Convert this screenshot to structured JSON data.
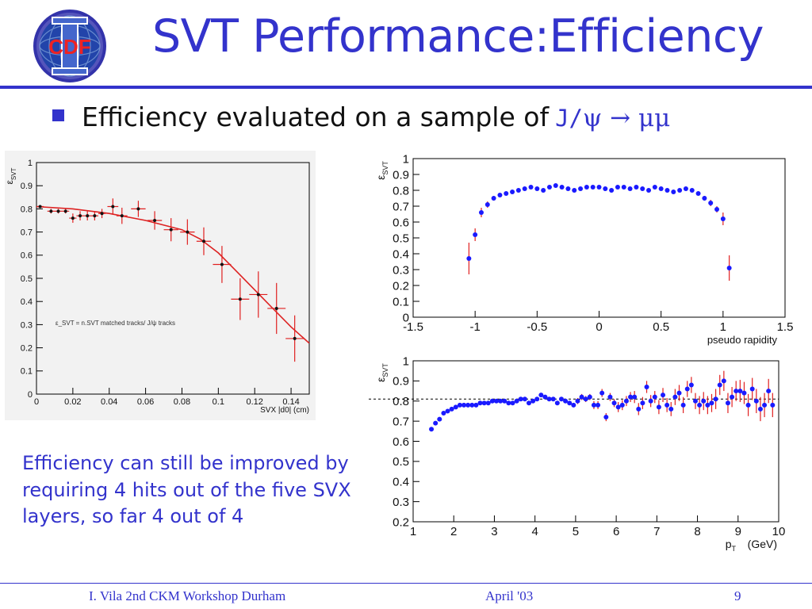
{
  "slide": {
    "logo_text": "CDF",
    "title": "SVT Performance:Efficiency",
    "bullet": {
      "text": "Efficiency evaluated on a sample of",
      "formula_prefix": "J/",
      "formula_greek": "ψ → μμ"
    },
    "note": "Efficiency can still be improved by requiring 4 hits out of the five SVX layers, so far 4 out of 4",
    "footer": {
      "left": "I. Vila  2nd CKM Workshop  Durham",
      "center": "April '03",
      "right": "9"
    },
    "colors": {
      "accent": "#3333cc",
      "marker_blue": "#1a1aff",
      "error_red": "#e02020",
      "fit_red": "#dd2222"
    }
  },
  "chart_data": [
    {
      "type": "scatter",
      "title": "",
      "ylabel": "ε_SVT",
      "xlabel": "SVX |d0| (cm)",
      "xlim": [
        0,
        0.15
      ],
      "ylim": [
        0,
        1
      ],
      "xticks": [
        "0",
        "0.02",
        "0.04",
        "0.06",
        "0.08",
        "0.1",
        "0.12",
        "0.14"
      ],
      "yticks": [
        "0",
        "0.1",
        "0.2",
        "0.3",
        "0.4",
        "0.5",
        "0.6",
        "0.7",
        "0.8",
        "0.9",
        "1"
      ],
      "annotation": "ε_SVT = n.SVT matched tracks/ J/ψ tracks",
      "fit": {
        "type": "curve",
        "color": "red",
        "x": [
          0,
          0.02,
          0.04,
          0.06,
          0.08,
          0.09,
          0.1,
          0.11,
          0.12,
          0.13,
          0.14,
          0.15
        ],
        "y": [
          0.81,
          0.8,
          0.78,
          0.75,
          0.71,
          0.67,
          0.61,
          0.53,
          0.45,
          0.37,
          0.29,
          0.22
        ]
      },
      "series": [
        {
          "x": [
            0.002,
            0.008,
            0.012,
            0.016,
            0.02,
            0.024,
            0.028,
            0.032,
            0.036,
            0.042,
            0.047,
            0.056,
            0.065,
            0.074,
            0.083,
            0.092,
            0.102,
            0.112,
            0.122,
            0.132,
            0.142
          ],
          "y": [
            0.81,
            0.79,
            0.79,
            0.79,
            0.76,
            0.77,
            0.77,
            0.77,
            0.78,
            0.81,
            0.77,
            0.8,
            0.75,
            0.71,
            0.7,
            0.66,
            0.56,
            0.41,
            0.43,
            0.37,
            0.24
          ],
          "ey": [
            0.005,
            0.01,
            0.01,
            0.01,
            0.02,
            0.02,
            0.02,
            0.02,
            0.02,
            0.035,
            0.035,
            0.035,
            0.04,
            0.05,
            0.055,
            0.06,
            0.08,
            0.09,
            0.1,
            0.11,
            0.1
          ],
          "ex": [
            0.002,
            0.002,
            0.002,
            0.002,
            0.002,
            0.002,
            0.002,
            0.002,
            0.002,
            0.003,
            0.003,
            0.004,
            0.004,
            0.004,
            0.004,
            0.004,
            0.005,
            0.005,
            0.005,
            0.005,
            0.005
          ]
        }
      ]
    },
    {
      "type": "scatter",
      "title": "",
      "ylabel": "ε_SVT",
      "xlabel": "pseudo rapidity",
      "xlim": [
        -1.5,
        1.5
      ],
      "ylim": [
        0,
        1
      ],
      "xticks": [
        "-1.5",
        "-1",
        "-0.5",
        "0",
        "0.5",
        "1",
        "1.5"
      ],
      "yticks": [
        "0",
        "0.1",
        "0.2",
        "0.3",
        "0.4",
        "0.5",
        "0.6",
        "0.7",
        "0.8",
        "0.9",
        "1"
      ],
      "series": [
        {
          "x": [
            -1.05,
            -1.0,
            -0.95,
            -0.9,
            -0.85,
            -0.8,
            -0.75,
            -0.7,
            -0.65,
            -0.6,
            -0.55,
            -0.5,
            -0.45,
            -0.4,
            -0.35,
            -0.3,
            -0.25,
            -0.2,
            -0.15,
            -0.1,
            -0.05,
            0.0,
            0.05,
            0.1,
            0.15,
            0.2,
            0.25,
            0.3,
            0.35,
            0.4,
            0.45,
            0.5,
            0.55,
            0.6,
            0.65,
            0.7,
            0.75,
            0.8,
            0.85,
            0.9,
            0.95,
            1.0,
            1.05
          ],
          "y": [
            0.37,
            0.52,
            0.66,
            0.71,
            0.75,
            0.77,
            0.78,
            0.79,
            0.8,
            0.81,
            0.82,
            0.81,
            0.8,
            0.82,
            0.83,
            0.82,
            0.81,
            0.8,
            0.81,
            0.82,
            0.82,
            0.82,
            0.81,
            0.8,
            0.82,
            0.82,
            0.81,
            0.82,
            0.81,
            0.8,
            0.82,
            0.81,
            0.8,
            0.79,
            0.8,
            0.81,
            0.8,
            0.78,
            0.75,
            0.72,
            0.68,
            0.62,
            0.31
          ],
          "ey": [
            0.1,
            0.04,
            0.03,
            0.02,
            0.015,
            0.01,
            0.01,
            0.01,
            0.01,
            0.01,
            0.01,
            0.01,
            0.01,
            0.01,
            0.01,
            0.01,
            0.01,
            0.01,
            0.01,
            0.01,
            0.01,
            0.01,
            0.01,
            0.01,
            0.01,
            0.01,
            0.01,
            0.01,
            0.01,
            0.01,
            0.01,
            0.01,
            0.01,
            0.01,
            0.01,
            0.01,
            0.01,
            0.01,
            0.015,
            0.02,
            0.02,
            0.04,
            0.08
          ]
        }
      ]
    },
    {
      "type": "scatter",
      "title": "",
      "ylabel": "ε_SVT",
      "xlabel": "p_T (GeV)",
      "xlim": [
        1,
        10
      ],
      "ylim": [
        0.2,
        1
      ],
      "xticks": [
        "1",
        "2",
        "3",
        "4",
        "5",
        "6",
        "7",
        "8",
        "9",
        "10"
      ],
      "yticks": [
        "0.2",
        "0.3",
        "0.4",
        "0.5",
        "0.6",
        "0.7",
        "0.8",
        "0.9",
        "1"
      ],
      "reference_line": {
        "y": 0.81,
        "style": "dashed"
      },
      "series": [
        {
          "x": [
            1.45,
            1.55,
            1.65,
            1.75,
            1.85,
            1.95,
            2.05,
            2.15,
            2.25,
            2.35,
            2.45,
            2.55,
            2.65,
            2.75,
            2.85,
            2.95,
            3.05,
            3.15,
            3.25,
            3.35,
            3.45,
            3.55,
            3.65,
            3.75,
            3.85,
            3.95,
            4.05,
            4.15,
            4.25,
            4.35,
            4.45,
            4.55,
            4.65,
            4.75,
            4.85,
            4.95,
            5.05,
            5.15,
            5.25,
            5.35,
            5.45,
            5.55,
            5.65,
            5.75,
            5.85,
            5.95,
            6.05,
            6.15,
            6.25,
            6.35,
            6.45,
            6.55,
            6.65,
            6.75,
            6.85,
            6.95,
            7.05,
            7.15,
            7.25,
            7.35,
            7.45,
            7.55,
            7.65,
            7.75,
            7.85,
            7.95,
            8.05,
            8.15,
            8.25,
            8.35,
            8.45,
            8.55,
            8.65,
            8.75,
            8.85,
            8.95,
            9.05,
            9.15,
            9.25,
            9.35,
            9.45,
            9.55,
            9.65,
            9.75,
            9.85
          ],
          "y": [
            0.66,
            0.69,
            0.71,
            0.74,
            0.75,
            0.76,
            0.77,
            0.78,
            0.78,
            0.78,
            0.78,
            0.78,
            0.79,
            0.79,
            0.79,
            0.8,
            0.8,
            0.8,
            0.8,
            0.79,
            0.79,
            0.8,
            0.81,
            0.81,
            0.79,
            0.8,
            0.81,
            0.83,
            0.82,
            0.81,
            0.81,
            0.79,
            0.81,
            0.8,
            0.79,
            0.78,
            0.8,
            0.82,
            0.81,
            0.82,
            0.78,
            0.78,
            0.84,
            0.72,
            0.82,
            0.79,
            0.77,
            0.78,
            0.8,
            0.82,
            0.82,
            0.76,
            0.79,
            0.87,
            0.8,
            0.82,
            0.77,
            0.83,
            0.78,
            0.76,
            0.82,
            0.84,
            0.78,
            0.86,
            0.88,
            0.8,
            0.78,
            0.8,
            0.78,
            0.79,
            0.81,
            0.88,
            0.9,
            0.79,
            0.82,
            0.85,
            0.85,
            0.84,
            0.78,
            0.86,
            0.8,
            0.76,
            0.78,
            0.85,
            0.78
          ],
          "ey": [
            0.005,
            0.005,
            0.005,
            0.005,
            0.005,
            0.005,
            0.005,
            0.005,
            0.005,
            0.005,
            0.005,
            0.005,
            0.005,
            0.005,
            0.005,
            0.005,
            0.005,
            0.005,
            0.005,
            0.005,
            0.005,
            0.005,
            0.01,
            0.01,
            0.01,
            0.01,
            0.01,
            0.01,
            0.01,
            0.01,
            0.01,
            0.01,
            0.01,
            0.01,
            0.01,
            0.01,
            0.015,
            0.015,
            0.015,
            0.015,
            0.02,
            0.02,
            0.02,
            0.02,
            0.02,
            0.02,
            0.025,
            0.025,
            0.025,
            0.025,
            0.03,
            0.03,
            0.03,
            0.03,
            0.03,
            0.03,
            0.035,
            0.035,
            0.035,
            0.035,
            0.04,
            0.04,
            0.04,
            0.04,
            0.04,
            0.04,
            0.045,
            0.045,
            0.045,
            0.045,
            0.05,
            0.05,
            0.05,
            0.05,
            0.05,
            0.05,
            0.055,
            0.055,
            0.055,
            0.055,
            0.06,
            0.06,
            0.06,
            0.06,
            0.06
          ]
        }
      ]
    }
  ]
}
